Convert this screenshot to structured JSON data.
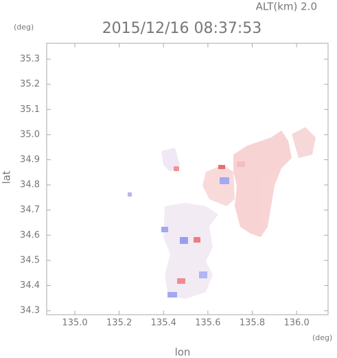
{
  "chart_data": {
    "type": "map",
    "title": "2015/12/16 08:37:53",
    "altitude_label": "ALT(km)  2.0",
    "y_unit": "(deg)",
    "x_unit": "(deg)",
    "xlabel": "lon",
    "ylabel": "lat",
    "xlim": [
      134.873,
      136.142
    ],
    "ylim": [
      34.284,
      35.363
    ],
    "xticks": [
      {
        "value": 135,
        "label": "135.0"
      },
      135.2,
      135.4,
      135.6,
      135.8,
      {
        "value": 136,
        "label": "136.0"
      }
    ],
    "yticks": [
      34.3,
      34.4,
      34.5,
      34.6,
      34.7,
      34.8,
      34.9,
      {
        "value": 35,
        "label": "35.0"
      },
      35.1,
      35.2,
      35.3
    ]
  }
}
